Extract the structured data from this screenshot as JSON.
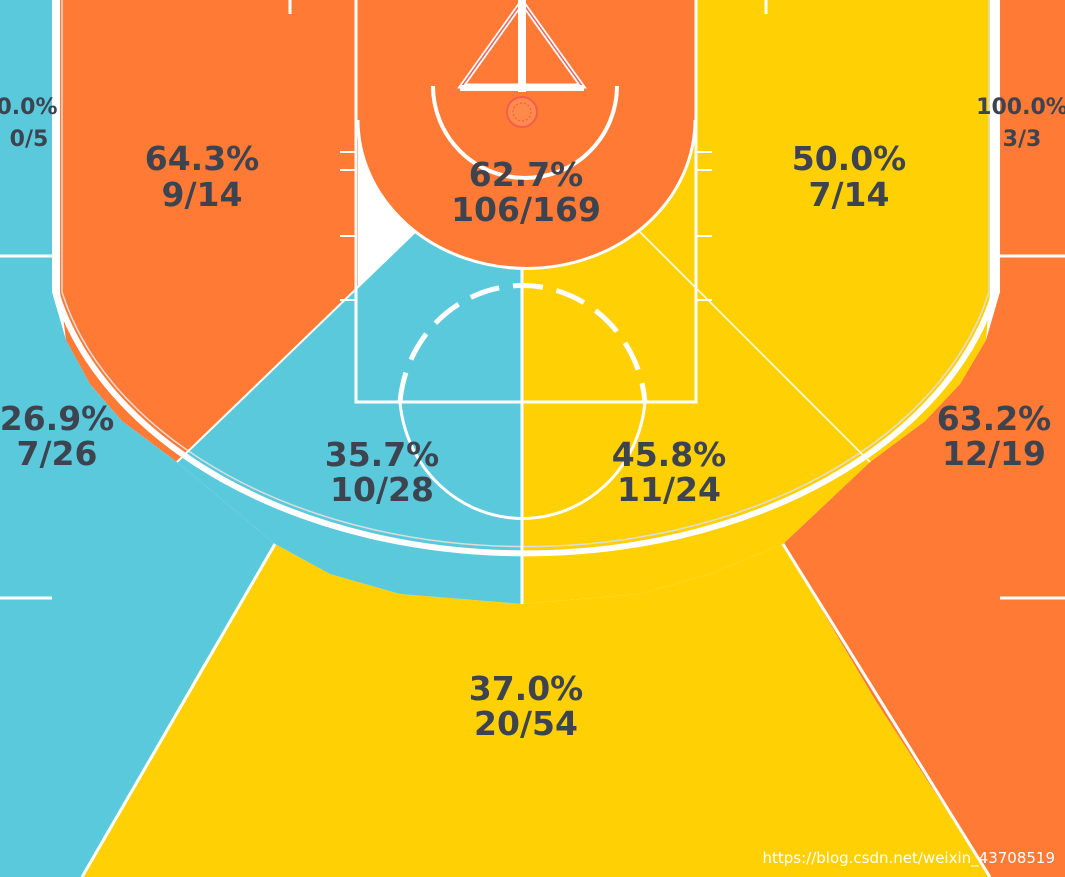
{
  "colors": {
    "cold": "#5BC9DC",
    "average": "#FFD105",
    "hot": "#FF7A35",
    "court_lines": "#ffffff",
    "label_text": "#3d4450"
  },
  "zones": [
    {
      "id": "left-corner-three",
      "pct": "0.0%",
      "made": "0/5",
      "heat": "cold"
    },
    {
      "id": "right-corner-three",
      "pct": "100.0%",
      "made": "3/3",
      "heat": "hot"
    },
    {
      "id": "left-baseline-mid",
      "pct": "64.3%",
      "made": "9/14",
      "heat": "hot"
    },
    {
      "id": "restricted-area",
      "pct": "62.7%",
      "made": "106/169",
      "heat": "hot"
    },
    {
      "id": "right-baseline-mid",
      "pct": "50.0%",
      "made": "7/14",
      "heat": "average"
    },
    {
      "id": "left-wing-three",
      "pct": "26.9%",
      "made": "7/26",
      "heat": "cold"
    },
    {
      "id": "left-elbow-mid",
      "pct": "35.7%",
      "made": "10/28",
      "heat": "cold"
    },
    {
      "id": "right-elbow-mid",
      "pct": "45.8%",
      "made": "11/24",
      "heat": "average"
    },
    {
      "id": "right-wing-three",
      "pct": "63.2%",
      "made": "12/19",
      "heat": "hot"
    },
    {
      "id": "top-key-three",
      "pct": "37.0%",
      "made": "20/54",
      "heat": "average"
    }
  ],
  "watermark": "https://blog.csdn.net/weixin_43708519"
}
